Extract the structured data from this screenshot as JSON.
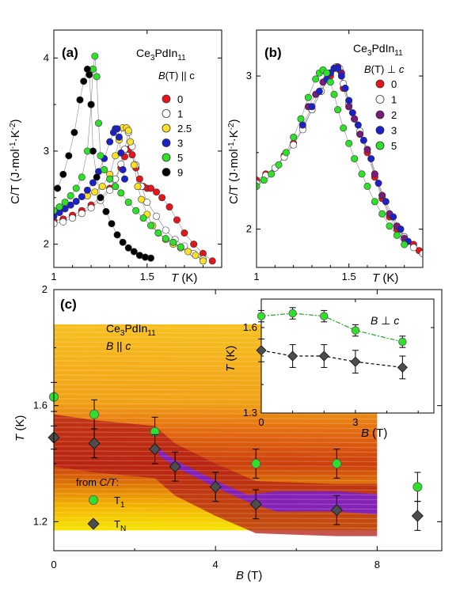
{
  "chart_data": [
    {
      "panel": "(a)",
      "type": "scatter",
      "title": "Ce3PdIn11",
      "legend_title": "B(T) || c",
      "xlabel": "T (K)",
      "ylabel": "C/T (J·mol⁻¹·K⁻²)",
      "xlim": [
        1.0,
        1.9
      ],
      "ylim": [
        1.75,
        4.3
      ],
      "x_ticks": [
        "1",
        "1.5"
      ],
      "y_ticks": [
        "2",
        "3",
        "4"
      ],
      "series": [
        {
          "name": "0",
          "color": "#e8141c",
          "x": [
            1.0,
            1.05,
            1.1,
            1.15,
            1.2,
            1.25,
            1.3,
            1.33,
            1.36,
            1.38,
            1.4,
            1.42,
            1.44,
            1.46,
            1.48,
            1.5,
            1.52,
            1.55,
            1.58,
            1.62,
            1.66,
            1.7,
            1.75,
            1.8,
            1.85
          ],
          "y": [
            2.25,
            2.27,
            2.31,
            2.36,
            2.42,
            2.5,
            2.6,
            2.7,
            2.82,
            2.94,
            3.02,
            2.96,
            2.82,
            2.7,
            2.62,
            2.6,
            2.6,
            2.56,
            2.5,
            2.4,
            2.26,
            2.12,
            2.0,
            1.9,
            1.82
          ]
        },
        {
          "name": "1",
          "color": "#ffffff",
          "x": [
            1.0,
            1.05,
            1.1,
            1.15,
            1.2,
            1.25,
            1.3,
            1.33,
            1.36,
            1.38,
            1.4,
            1.42,
            1.44,
            1.47,
            1.5,
            1.55,
            1.6,
            1.65,
            1.7,
            1.75,
            1.8
          ],
          "y": [
            2.22,
            2.24,
            2.28,
            2.33,
            2.39,
            2.47,
            2.58,
            2.7,
            2.86,
            3.02,
            3.2,
            3.05,
            2.85,
            2.62,
            2.45,
            2.3,
            2.15,
            2.05,
            1.98,
            1.9,
            1.84
          ]
        },
        {
          "name": "2.5",
          "color": "#ffe12a",
          "x": [
            1.18,
            1.22,
            1.26,
            1.3,
            1.33,
            1.35,
            1.37,
            1.39,
            1.4,
            1.41,
            1.43,
            1.45,
            1.47,
            1.5,
            1.53,
            1.56,
            1.6,
            1.64,
            1.68,
            1.72,
            1.76,
            1.8
          ],
          "y": [
            2.52,
            2.56,
            2.62,
            2.75,
            2.95,
            3.12,
            3.25,
            3.25,
            3.22,
            3.1,
            2.85,
            2.62,
            2.48,
            2.32,
            2.2,
            2.12,
            2.05,
            2.0,
            1.96,
            1.92,
            1.88,
            1.82
          ]
        },
        {
          "name": "3",
          "color": "#1c20c8",
          "x": [
            1.0,
            1.03,
            1.06,
            1.09,
            1.12,
            1.15,
            1.18,
            1.21,
            1.24,
            1.27,
            1.3,
            1.32,
            1.33,
            1.34,
            1.35,
            1.36,
            1.37,
            1.38
          ],
          "y": [
            2.3,
            2.34,
            2.38,
            2.42,
            2.46,
            2.51,
            2.58,
            2.66,
            2.78,
            2.92,
            3.1,
            3.2,
            3.24,
            3.24,
            3.15,
            2.98,
            2.8,
            2.7
          ]
        },
        {
          "name": "5",
          "color": "#2ee02a",
          "x": [
            1.0,
            1.03,
            1.06,
            1.09,
            1.12,
            1.15,
            1.18,
            1.2,
            1.21,
            1.22,
            1.23,
            1.24,
            1.25,
            1.27,
            1.3,
            1.33,
            1.36,
            1.4,
            1.44,
            1.48,
            1.52,
            1.56,
            1.6,
            1.64,
            1.68
          ],
          "y": [
            2.36,
            2.4,
            2.45,
            2.52,
            2.6,
            2.72,
            3.0,
            3.5,
            3.88,
            4.02,
            3.8,
            3.3,
            2.95,
            2.8,
            2.7,
            2.62,
            2.55,
            2.45,
            2.36,
            2.28,
            2.2,
            2.12,
            2.06,
            2.02,
            1.97
          ]
        },
        {
          "name": "9",
          "color": "#000000",
          "x": [
            1.02,
            1.05,
            1.08,
            1.11,
            1.14,
            1.16,
            1.18,
            1.19,
            1.2,
            1.21,
            1.23,
            1.25,
            1.28,
            1.31,
            1.34,
            1.37,
            1.4,
            1.43,
            1.46,
            1.49,
            1.52
          ],
          "y": [
            2.6,
            2.75,
            2.95,
            3.2,
            3.55,
            3.75,
            3.88,
            3.82,
            3.5,
            3.0,
            2.72,
            2.5,
            2.35,
            2.22,
            2.1,
            2.02,
            1.96,
            1.92,
            1.88,
            1.86,
            1.85
          ]
        }
      ]
    },
    {
      "panel": "(b)",
      "type": "scatter",
      "title": "Ce3PdIn11",
      "legend_title": "B(T) ⊥ c",
      "xlabel": "T (K)",
      "ylabel": "C/T (J·mol⁻¹·K⁻²)",
      "xlim": [
        1.0,
        1.9
      ],
      "ylim": [
        1.75,
        3.3
      ],
      "x_ticks": [
        "1",
        "1.5"
      ],
      "y_ticks": [
        "2",
        "3"
      ],
      "series": [
        {
          "name": "0",
          "color": "#e8141c",
          "x": [
            1.0,
            1.05,
            1.1,
            1.15,
            1.2,
            1.25,
            1.3,
            1.35,
            1.4,
            1.43,
            1.45,
            1.47,
            1.5,
            1.53,
            1.56,
            1.6,
            1.64,
            1.68,
            1.72,
            1.76,
            1.8,
            1.85,
            1.88
          ],
          "y": [
            2.32,
            2.36,
            2.4,
            2.48,
            2.56,
            2.66,
            2.78,
            2.9,
            3.0,
            3.06,
            3.04,
            2.92,
            2.8,
            2.72,
            2.62,
            2.5,
            2.34,
            2.2,
            2.08,
            2.0,
            1.95,
            1.9,
            1.86
          ]
        },
        {
          "name": "1",
          "color": "#ffffff",
          "x": [
            1.0,
            1.05,
            1.1,
            1.15,
            1.2,
            1.25,
            1.3,
            1.35,
            1.4,
            1.43,
            1.45,
            1.47,
            1.5,
            1.53,
            1.56,
            1.6,
            1.64,
            1.68,
            1.72,
            1.76,
            1.8,
            1.85,
            1.9
          ],
          "y": [
            2.3,
            2.35,
            2.4,
            2.47,
            2.55,
            2.65,
            2.78,
            2.9,
            3.02,
            3.06,
            3.05,
            2.95,
            2.82,
            2.72,
            2.64,
            2.52,
            2.36,
            2.22,
            2.1,
            2.02,
            1.95,
            1.88,
            1.84
          ]
        },
        {
          "name": "2",
          "color": "#7a1a7a",
          "x": [
            1.28,
            1.32,
            1.36,
            1.4,
            1.42,
            1.44,
            1.46,
            1.48,
            1.5,
            1.53,
            1.56,
            1.6,
            1.64,
            1.68,
            1.72,
            1.76,
            1.8
          ],
          "y": [
            2.8,
            2.88,
            2.96,
            3.02,
            3.05,
            3.06,
            3.02,
            2.92,
            2.8,
            2.72,
            2.62,
            2.52,
            2.36,
            2.22,
            2.1,
            2.02,
            1.94
          ]
        },
        {
          "name": "3",
          "color": "#1c20c8",
          "x": [
            1.25,
            1.3,
            1.34,
            1.38,
            1.4,
            1.42,
            1.44,
            1.46,
            1.48,
            1.5,
            1.52,
            1.55,
            1.58,
            1.62,
            1.66,
            1.7,
            1.74,
            1.78,
            1.82
          ],
          "y": [
            2.68,
            2.8,
            2.9,
            2.98,
            3.02,
            3.05,
            3.05,
            3.0,
            2.92,
            2.84,
            2.76,
            2.68,
            2.58,
            2.46,
            2.3,
            2.18,
            2.08,
            2.0,
            1.92
          ]
        },
        {
          "name": "5",
          "color": "#2ee02a",
          "x": [
            1.0,
            1.04,
            1.08,
            1.12,
            1.16,
            1.2,
            1.24,
            1.28,
            1.32,
            1.34,
            1.36,
            1.38,
            1.4,
            1.42,
            1.44,
            1.47,
            1.5,
            1.53,
            1.57,
            1.6,
            1.64,
            1.68,
            1.72,
            1.76,
            1.8
          ],
          "y": [
            2.28,
            2.32,
            2.36,
            2.42,
            2.5,
            2.6,
            2.72,
            2.86,
            2.98,
            3.02,
            3.04,
            3.02,
            2.96,
            2.88,
            2.78,
            2.66,
            2.56,
            2.46,
            2.36,
            2.28,
            2.18,
            2.1,
            2.02,
            1.96,
            1.9
          ]
        }
      ]
    },
    {
      "panel": "(c)",
      "type": "scatter",
      "title": "Ce3PdIn11",
      "subtitle": "B || c",
      "xlabel": "B (T)",
      "ylabel": "T (K)",
      "xlim": [
        0,
        9.6
      ],
      "ylim": [
        1.1,
        2.0
      ],
      "x_ticks": [
        "0",
        "4",
        "8"
      ],
      "y_ticks": [
        "1.2",
        "1.6",
        "2"
      ],
      "legend_title": "from C/T:",
      "series": [
        {
          "name": "T1",
          "color": "#2ee02a",
          "marker": "circle",
          "x": [
            0,
            1,
            2.5,
            5,
            7,
            9
          ],
          "y": [
            1.63,
            1.57,
            1.51,
            1.4,
            1.4,
            1.32
          ],
          "err": [
            0.05,
            0.05,
            0.05,
            0.05,
            0.05,
            0.05
          ]
        },
        {
          "name": "TN",
          "color": "#4d4d4d",
          "marker": "diamond",
          "x": [
            0,
            1,
            2.5,
            3,
            4,
            5,
            7,
            9
          ],
          "y": [
            1.49,
            1.47,
            1.45,
            1.39,
            1.32,
            1.26,
            1.24,
            1.22
          ],
          "err": [
            0.04,
            0.05,
            0.05,
            0.05,
            0.05,
            0.05,
            0.05,
            0.05
          ]
        }
      ],
      "heatmap_extent": {
        "x": [
          0,
          8
        ],
        "y": [
          1.17,
          1.88
        ]
      }
    },
    {
      "panel": "(c) inset",
      "type": "scatter",
      "title": "B ⊥ c",
      "xlabel": "B (T)",
      "ylabel": "T (K)",
      "xlim": [
        0,
        5.5
      ],
      "ylim": [
        1.3,
        1.7
      ],
      "x_ticks": [
        "0",
        "3"
      ],
      "y_ticks": [
        "1.3",
        "1.6"
      ],
      "series": [
        {
          "name": "T1",
          "color": "#2ee02a",
          "marker": "circle",
          "x": [
            0,
            1,
            2,
            3,
            4.5
          ],
          "y": [
            1.64,
            1.65,
            1.64,
            1.59,
            1.55
          ],
          "err": [
            0.02,
            0.02,
            0.02,
            0.02,
            0.02
          ]
        },
        {
          "name": "TN",
          "color": "#4d4d4d",
          "marker": "diamond",
          "x": [
            0,
            1,
            2,
            3,
            4.5
          ],
          "y": [
            1.52,
            1.5,
            1.5,
            1.48,
            1.46
          ],
          "err": [
            0.04,
            0.04,
            0.04,
            0.04,
            0.04
          ]
        }
      ]
    }
  ]
}
